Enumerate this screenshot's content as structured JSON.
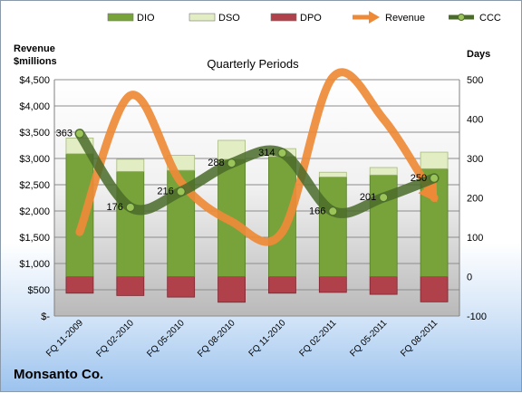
{
  "chart_data": {
    "type": "bar",
    "title": "Quarterly Periods",
    "y_left_label_line1": "Revenue",
    "y_left_label_line2": "$millions",
    "y_right_label": "Days",
    "company": "Monsanto Co.",
    "categories": [
      "FQ 11-2009",
      "FQ 02-2010",
      "FQ 05-2010",
      "FQ 08-2010",
      "FQ 11-2010",
      "FQ 02-2011",
      "FQ 05-2011",
      "FQ 08-2011"
    ],
    "left_axis": {
      "min": 0,
      "max": 4500,
      "step": 500,
      "tick_labels": [
        "$-",
        "$500",
        "$1,000",
        "$1,500",
        "$2,000",
        "$2,500",
        "$3,000",
        "$3,500",
        "$4,000",
        "$4,500"
      ]
    },
    "right_axis": {
      "min": -100,
      "max": 500,
      "step": 100,
      "tick_labels": [
        "-100",
        "0",
        "100",
        "200",
        "300",
        "400",
        "500"
      ]
    },
    "grid": true,
    "legend_position": "top",
    "series": [
      {
        "name": "DIO",
        "kind": "bar",
        "axis": "right",
        "color": "#77a33a",
        "values": [
          312,
          267,
          270,
          298,
          305,
          253,
          258,
          274
        ]
      },
      {
        "name": "DSO",
        "kind": "bar",
        "axis": "right",
        "color": "#e2edc4",
        "values": [
          40,
          31,
          38,
          48,
          20,
          12,
          19,
          42
        ]
      },
      {
        "name": "DPO",
        "kind": "bar",
        "axis": "right",
        "color": "#b0404a",
        "values": [
          -42,
          -48,
          -52,
          -65,
          -42,
          -40,
          -45,
          -64
        ]
      },
      {
        "name": "Revenue",
        "kind": "line",
        "axis": "left",
        "color": "#ee8a37",
        "values": [
          1600,
          4200,
          2550,
          1800,
          1600,
          4550,
          3750,
          2250
        ]
      },
      {
        "name": "CCC",
        "kind": "line",
        "axis": "right",
        "color": "#4a6b2a",
        "values": [
          363,
          176,
          216,
          288,
          314,
          166,
          201,
          250
        ],
        "labels": [
          "363",
          "176",
          "216",
          "288",
          "314",
          "166",
          "201",
          "250"
        ]
      }
    ]
  }
}
